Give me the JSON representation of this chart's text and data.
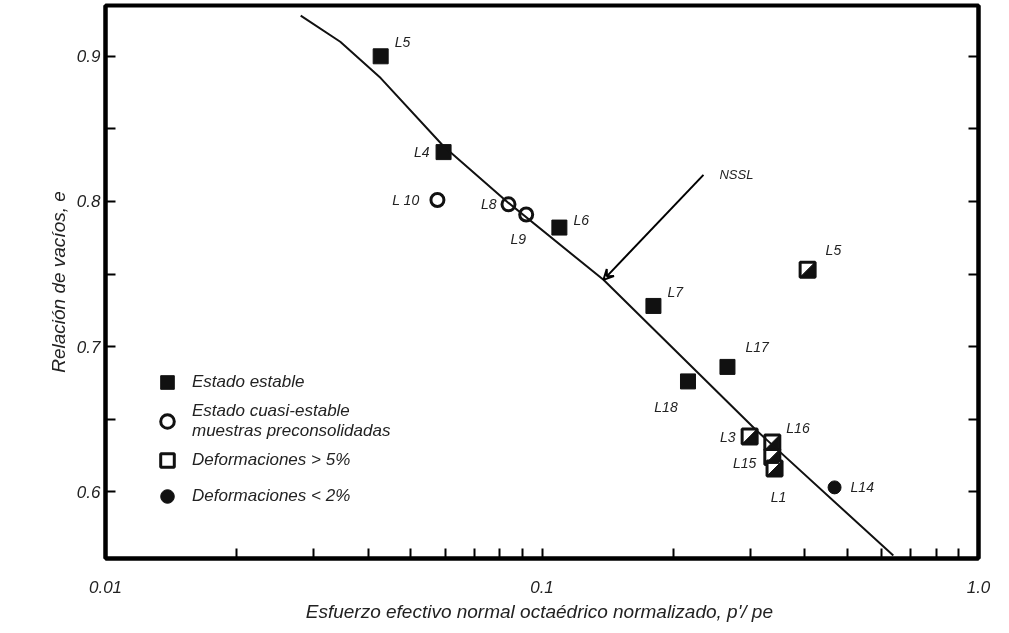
{
  "chart_data": {
    "type": "scatter",
    "xlabel": "Esfuerzo efectivo normal octaédrico normalizado,  p'/ pe",
    "ylabel": "Relación de vacíos, e",
    "log": "x",
    "grid": false,
    "legend": "left",
    "xlim": [
      0.01,
      1.0
    ],
    "xticks": [
      {
        "value": 0.01,
        "label": "0.01"
      },
      {
        "value": 0.02,
        "label": null
      },
      {
        "value": 0.03,
        "label": null
      },
      {
        "value": 0.04,
        "label": null
      },
      {
        "value": 0.05,
        "label": null
      },
      {
        "value": 0.06,
        "label": null
      },
      {
        "value": 0.07,
        "label": null
      },
      {
        "value": 0.08,
        "label": null
      },
      {
        "value": 0.09,
        "label": null
      },
      {
        "value": 0.1,
        "label": "0.1"
      },
      {
        "value": 0.2,
        "label": null
      },
      {
        "value": 0.3,
        "label": null
      },
      {
        "value": 0.4,
        "label": null
      },
      {
        "value": 0.5,
        "label": null
      },
      {
        "value": 0.6,
        "label": null
      },
      {
        "value": 0.7,
        "label": null
      },
      {
        "value": 0.8,
        "label": null
      },
      {
        "value": 0.9,
        "label": null
      },
      {
        "value": 1.0,
        "label": "1.0"
      }
    ],
    "ylim": [
      0.554,
      0.935
    ],
    "yticks": [
      0.6,
      {
        "value": 0.65,
        "label": null
      },
      0.7,
      {
        "value": 0.75,
        "label": null
      },
      0.8,
      {
        "value": 0.85,
        "label": null
      },
      0.9
    ],
    "series": [
      {
        "name": "Estado estable",
        "marker": "square",
        "color": "#111111",
        "x": [
          0.0427,
          0.0595,
          0.1096,
          0.18,
          0.266,
          0.216
        ],
        "values": [
          0.9,
          0.834,
          0.782,
          0.728,
          0.686,
          0.676
        ]
      },
      {
        "name": "Estado cuasi-estable\nmuestras preconsolidadas",
        "marker": "circle",
        "color": "#111111",
        "x": [
          0.0576,
          0.0838,
          0.092
        ],
        "values": [
          0.801,
          0.798,
          0.791
        ]
      },
      {
        "name": "Deformaciones > 5%",
        "marker": "square",
        "color": "#111111",
        "x": [
          0.406,
          0.299,
          0.337,
          0.337,
          0.341
        ],
        "values": [
          0.753,
          0.638,
          0.634,
          0.624,
          0.616
        ]
      },
      {
        "name": "Deformaciones < 2%",
        "marker": "circle",
        "color": "#111111",
        "x": [
          0.468
        ],
        "values": [
          0.603
        ]
      },
      {
        "type": "line",
        "line_style": "solid",
        "color": "#111111",
        "x": [
          0.028,
          0.0345,
          0.0427,
          0.0595,
          0.0838,
          0.1383,
          0.308,
          0.638
        ],
        "values": [
          0.928,
          0.91,
          0.885,
          0.838,
          0.799,
          0.746,
          0.643,
          0.556
        ]
      }
    ],
    "annotations": [
      {
        "text": "L5",
        "x": 0.0427,
        "y": 0.9
      },
      {
        "text": "L4",
        "x": 0.0595,
        "y": 0.834
      },
      {
        "text": "L 10",
        "x": 0.0576,
        "y": 0.801
      },
      {
        "text": "L8",
        "x": 0.0838,
        "y": 0.798
      },
      {
        "text": "L9",
        "x": 0.092,
        "y": 0.791
      },
      {
        "text": "L6",
        "x": 0.1096,
        "y": 0.782
      },
      {
        "text": "L7",
        "x": 0.18,
        "y": 0.728
      },
      {
        "text": "L17",
        "x": 0.266,
        "y": 0.686
      },
      {
        "text": "L18",
        "x": 0.216,
        "y": 0.676
      },
      {
        "text": "L5",
        "x": 0.406,
        "y": 0.753
      },
      {
        "text": "L3",
        "x": 0.299,
        "y": 0.638
      },
      {
        "text": "L16",
        "x": 0.337,
        "y": 0.634
      },
      {
        "text": "L15",
        "x": 0.337,
        "y": 0.624
      },
      {
        "text": "L1",
        "x": 0.341,
        "y": 0.616
      },
      {
        "text": "L14",
        "x": 0.468,
        "y": 0.603
      },
      {
        "text": "NSSL",
        "x": 0.1383,
        "y": 0.746
      }
    ]
  }
}
